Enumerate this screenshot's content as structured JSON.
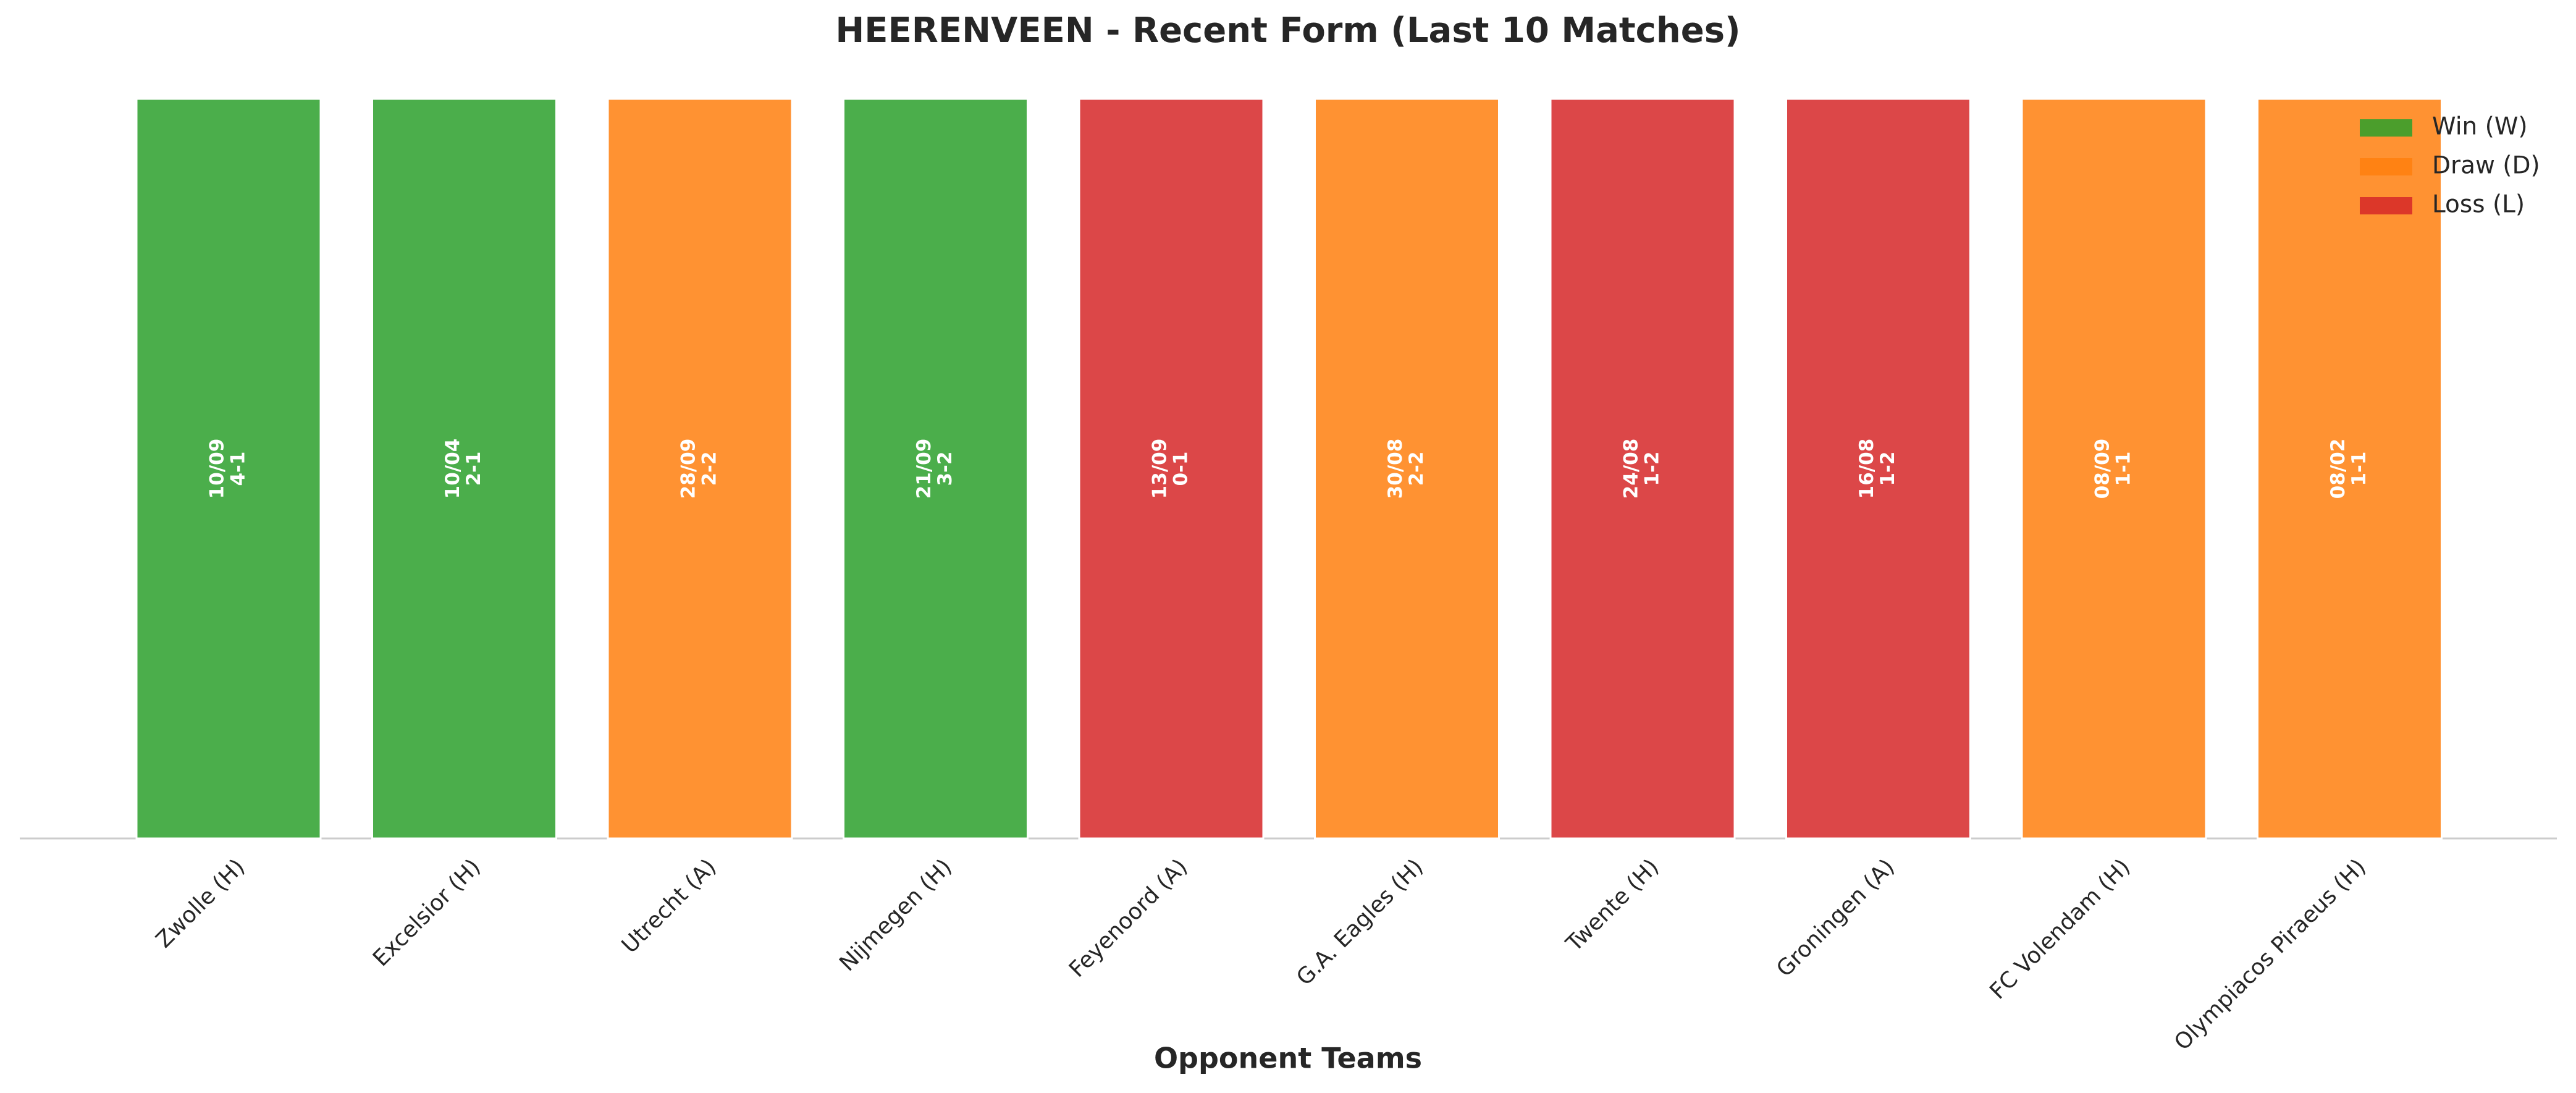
{
  "chart_data": {
    "type": "bar",
    "title": "HEERENVEEN - Recent Form (Last 10 Matches)",
    "x_label": "Opponent Teams",
    "categories": [
      "Zwolle (H)",
      "Excelsior (H)",
      "Utrecht (A)",
      "Nijmegen (H)",
      "Feyenoord (A)",
      "G.A. Eagles (H)",
      "Twente (H)",
      "Groningen (A)",
      "FC Volendam (H)",
      "Olympiacos Piraeus (H)"
    ],
    "values": [
      1,
      1,
      1,
      1,
      1,
      1,
      1,
      1,
      1,
      1
    ],
    "dates": [
      "10/09",
      "10/04",
      "28/09",
      "21/09",
      "13/09",
      "30/08",
      "24/08",
      "16/08",
      "08/09",
      "08/02"
    ],
    "scores": [
      "4-1",
      "2-1",
      "2-2",
      "3-2",
      "0-1",
      "2-2",
      "1-2",
      "1-2",
      "1-1",
      "1-1"
    ],
    "colors": [
      "#2ca02c",
      "#2ca02c",
      "#ff7f0e",
      "#2ca02c",
      "#d62728",
      "#ff7f0e",
      "#d62728",
      "#d62728",
      "#ff7f0e",
      "#ff7f0e"
    ],
    "ylim": [
      0,
      1
    ],
    "legend_position": "upper right",
    "legend": [
      {
        "name": "Win (W)",
        "color": "#2ca02c"
      },
      {
        "name": "Draw (D)",
        "color": "#ff7f0e"
      },
      {
        "name": "Loss (L)",
        "color": "#d62728"
      }
    ]
  }
}
